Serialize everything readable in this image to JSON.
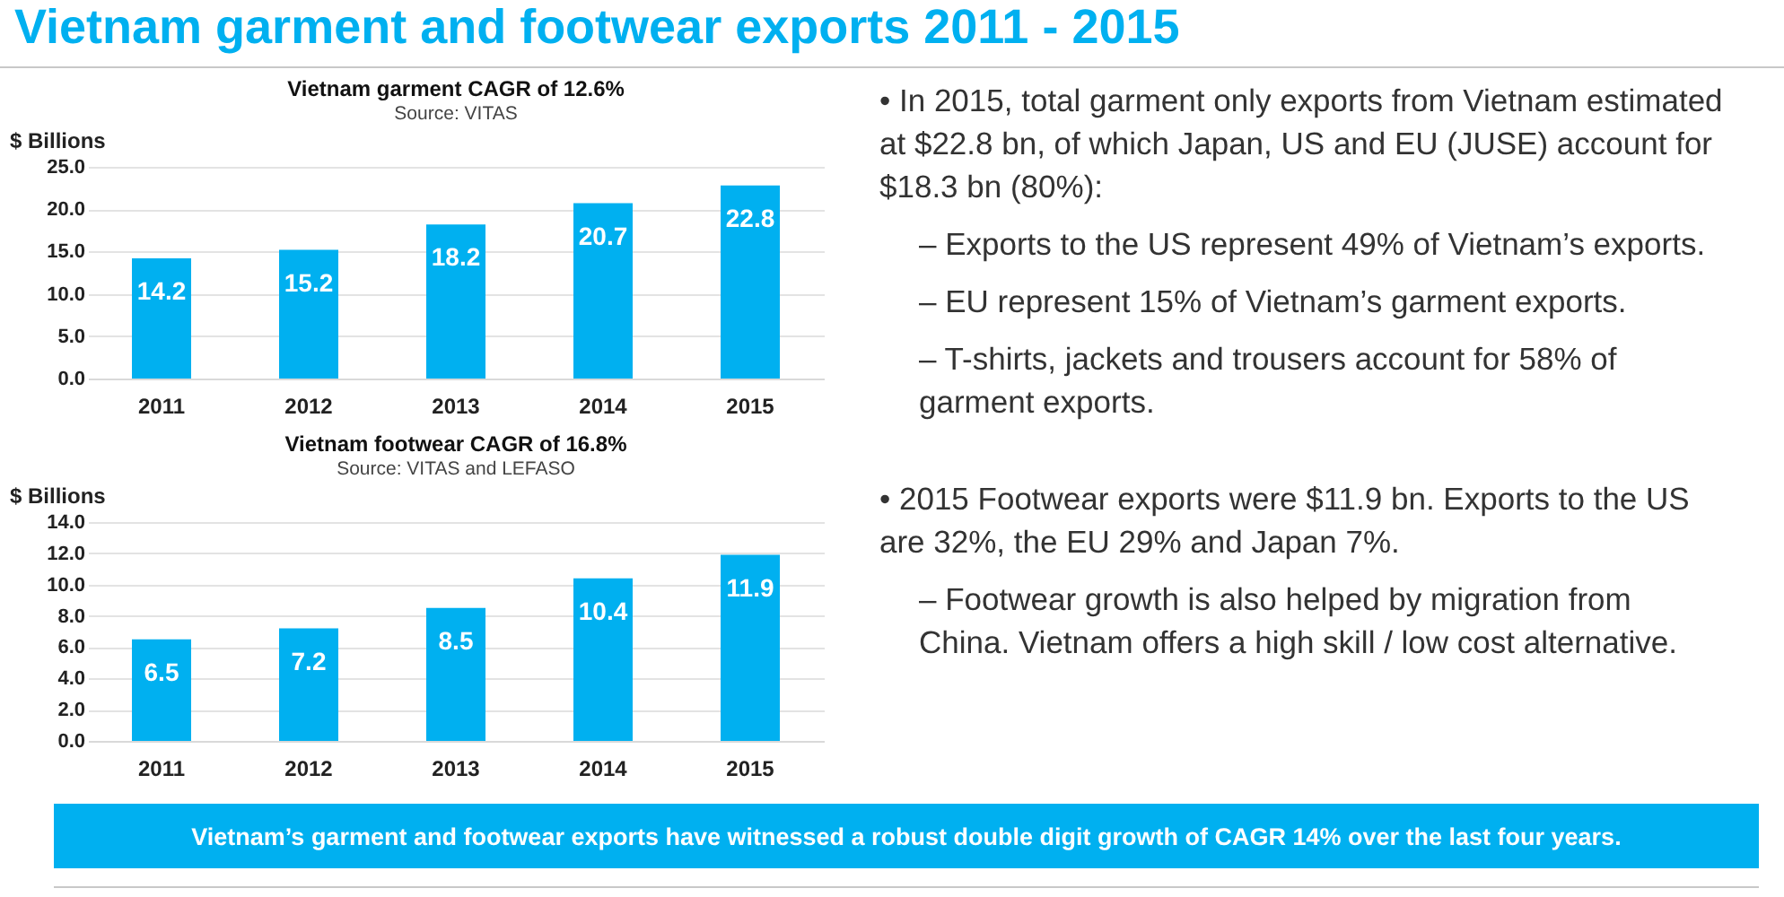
{
  "chart_data": [
    {
      "type": "bar",
      "title": "Vietnam garment CAGR of 12.6%",
      "subtitle": "Source:  VITAS",
      "ylabel": "$ Billions",
      "categories": [
        "2011",
        "2012",
        "2013",
        "2014",
        "2015"
      ],
      "values": [
        14.2,
        15.2,
        18.2,
        20.7,
        22.8
      ],
      "color": "#00b0f0",
      "ylim": [
        0,
        25
      ],
      "yticks": [
        {
          "value": 0,
          "label": "0.0"
        },
        {
          "value": 5,
          "label": "5.0"
        },
        {
          "value": 10,
          "label": "10.0"
        },
        {
          "value": 15,
          "label": "15.0"
        },
        {
          "value": 20,
          "label": "20.0"
        },
        {
          "value": 25,
          "label": "25.0"
        }
      ],
      "grid": "y",
      "data_labels": true
    },
    {
      "type": "bar",
      "title": "Vietnam footwear CAGR of 16.8%",
      "subtitle": "Source:  VITAS and LEFASO",
      "ylabel": "$ Billions",
      "categories": [
        "2011",
        "2012",
        "2013",
        "2014",
        "2015"
      ],
      "values": [
        6.5,
        7.2,
        8.5,
        10.4,
        11.9
      ],
      "color": "#00b0f0",
      "ylim": [
        0,
        14
      ],
      "yticks": [
        {
          "value": 0,
          "label": "0.0"
        },
        {
          "value": 2,
          "label": "2.0"
        },
        {
          "value": 4,
          "label": "4.0"
        },
        {
          "value": 6,
          "label": "6.0"
        },
        {
          "value": 8,
          "label": "8.0"
        },
        {
          "value": 10,
          "label": "10.0"
        },
        {
          "value": 12,
          "label": "12.0"
        },
        {
          "value": 14,
          "label": "14.0"
        }
      ],
      "grid": "y",
      "data_labels": true
    },
    {
      "type": "other",
      "title": "Vietnam garment and footwear exports 2011 - 2015",
      "annotations": [
        "• In 2015, total garment only exports from Vietnam estimated at $22.8 bn, of which Japan, US and EU (JUSE) account for $18.3 bn (80%):",
        "– Exports to the US represent 49% of Vietnam’s exports.",
        "– EU represent 15% of Vietnam’s garment exports.",
        "– T-shirts, jackets and trousers account for 58% of garment exports.",
        "• 2015 Footwear exports were $11.9 bn. Exports to the US are 32%, the EU 29% and Japan 7%.",
        "– Footwear growth is also helped by migration from China. Vietnam offers a high skill / low cost alternative.",
        "Vietnam’s garment and footwear exports have witnessed a robust double digit growth of CAGR 14% over the last four years."
      ]
    }
  ]
}
